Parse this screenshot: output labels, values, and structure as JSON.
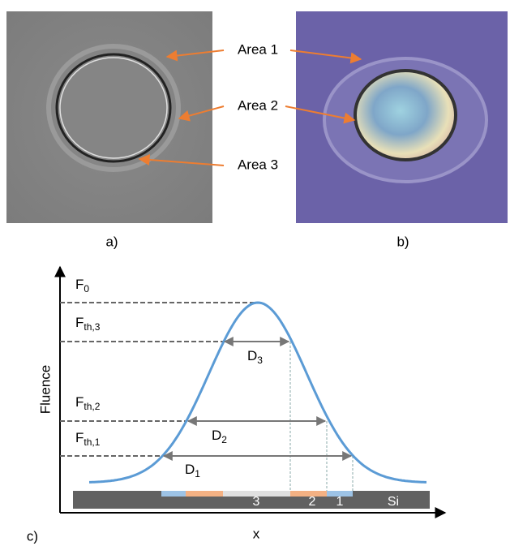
{
  "panel_a": {
    "label": "a)",
    "annotations": [
      "Area 1",
      "Area 2",
      "Area 3"
    ]
  },
  "panel_b": {
    "label": "b)"
  },
  "panel_c": {
    "label": "c)",
    "y_axis": "Fluence",
    "x_axis": "x",
    "levels": [
      {
        "main": "F",
        "sub": "0"
      },
      {
        "main": "F",
        "sub": "th,3"
      },
      {
        "main": "F",
        "sub": "th,2"
      },
      {
        "main": "F",
        "sub": "th,1"
      }
    ],
    "diameters": [
      {
        "main": "D",
        "sub": "3"
      },
      {
        "main": "D",
        "sub": "2"
      },
      {
        "main": "D",
        "sub": "1"
      }
    ],
    "zones": [
      "3",
      "2",
      "1",
      "Si"
    ]
  }
}
